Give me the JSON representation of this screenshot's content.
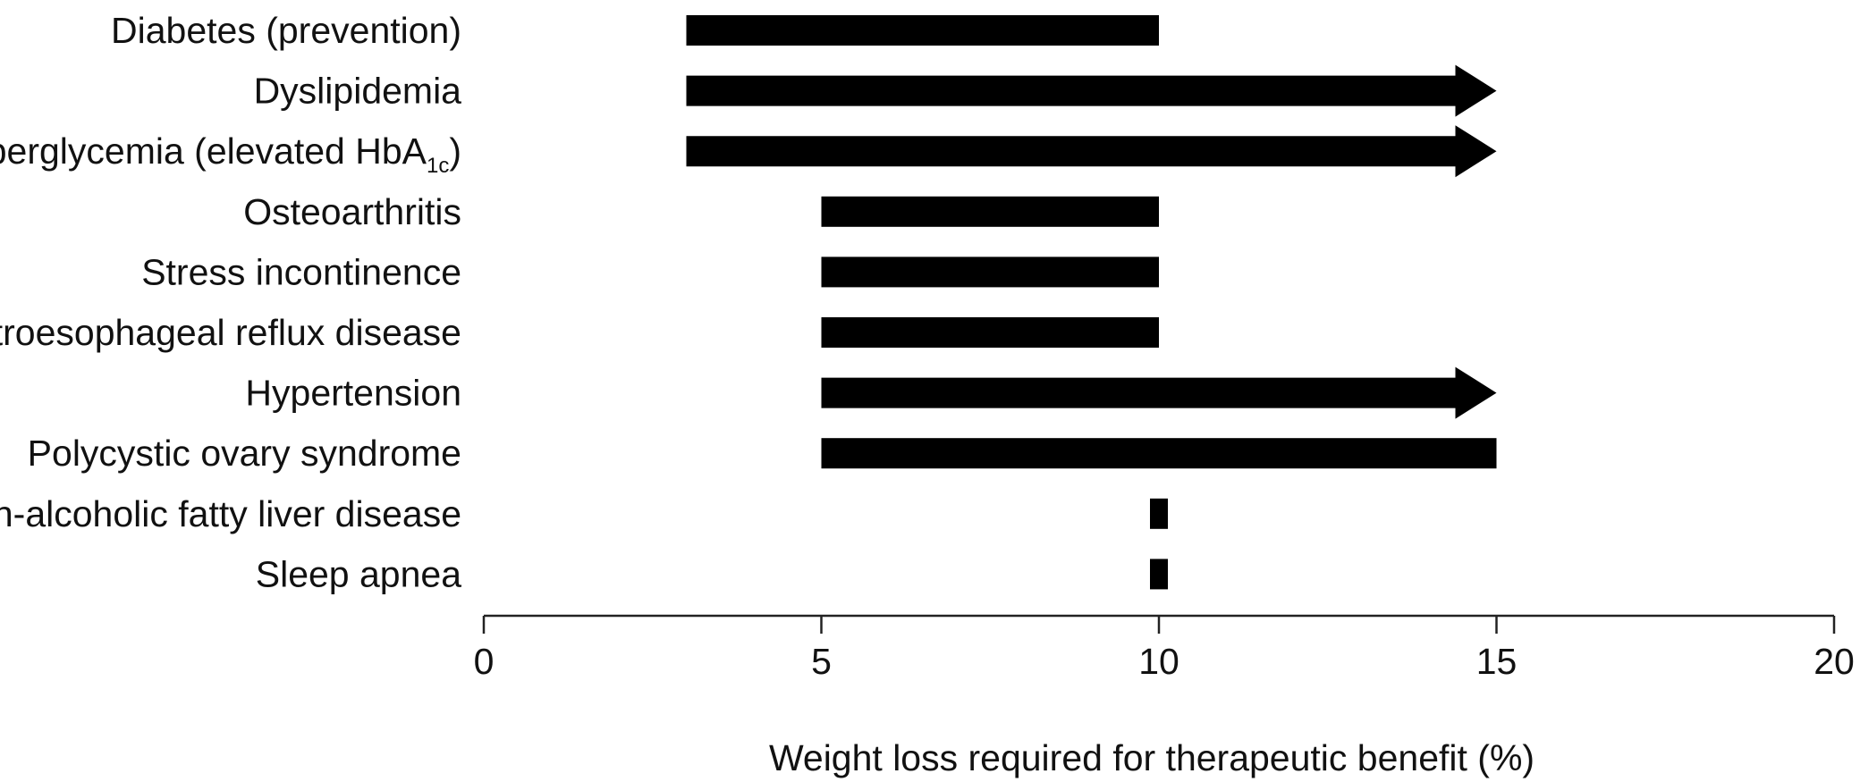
{
  "chart_data": {
    "type": "bar",
    "orientation": "horizontal",
    "xlabel": "Weight loss required for therapeutic benefit (%)",
    "ylabel": "",
    "xlim": [
      0,
      20
    ],
    "xticks": [
      0,
      5,
      10,
      15,
      20
    ],
    "grid": false,
    "bar_color": "#000000",
    "categories": [
      {
        "label": "Diabetes (prevention)",
        "start": 3,
        "end": 10,
        "open_ended": false
      },
      {
        "label": "Dyslipidemia",
        "start": 3,
        "end": 15,
        "open_ended": true
      },
      {
        "label": "Hyperglycemia (elevated HbA",
        "subscript": "1c",
        "suffix": ")",
        "start": 3,
        "end": 15,
        "open_ended": true
      },
      {
        "label": "Osteoarthritis",
        "start": 5,
        "end": 10,
        "open_ended": false
      },
      {
        "label": "Stress incontinence",
        "start": 5,
        "end": 10,
        "open_ended": false
      },
      {
        "label": "Gastroesophageal reflux disease",
        "start": 5,
        "end": 10,
        "open_ended": false
      },
      {
        "label": "Hypertension",
        "start": 5,
        "end": 15,
        "open_ended": true
      },
      {
        "label": "Polycystic ovary syndrome",
        "start": 5,
        "end": 15,
        "open_ended": false
      },
      {
        "label": "Non-alcoholic fatty liver disease",
        "start": 10,
        "end": 10,
        "open_ended": false
      },
      {
        "label": "Sleep apnea",
        "start": 10,
        "end": 10,
        "open_ended": false
      }
    ]
  }
}
